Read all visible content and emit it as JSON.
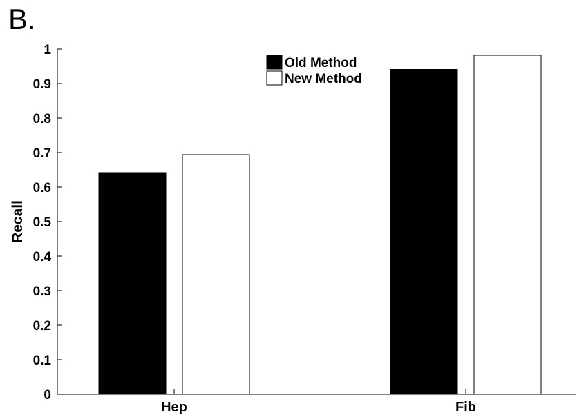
{
  "panel_label": "B.",
  "chart_data": {
    "type": "bar",
    "categories": [
      "Hep",
      "Fib"
    ],
    "series": [
      {
        "name": "Old Method",
        "values": [
          0.642,
          0.941
        ],
        "color": "#000000"
      },
      {
        "name": "New Method",
        "values": [
          0.694,
          0.982
        ],
        "color": "#ffffff"
      }
    ],
    "xlabel": "",
    "ylabel": "Recall",
    "ylim": [
      0,
      1
    ],
    "yticks": [
      "0",
      "0.1",
      "0.2",
      "0.3",
      "0.4",
      "0.5",
      "0.6",
      "0.7",
      "0.8",
      "0.9",
      "1"
    ],
    "grid": false,
    "legend_position": "top-center"
  }
}
